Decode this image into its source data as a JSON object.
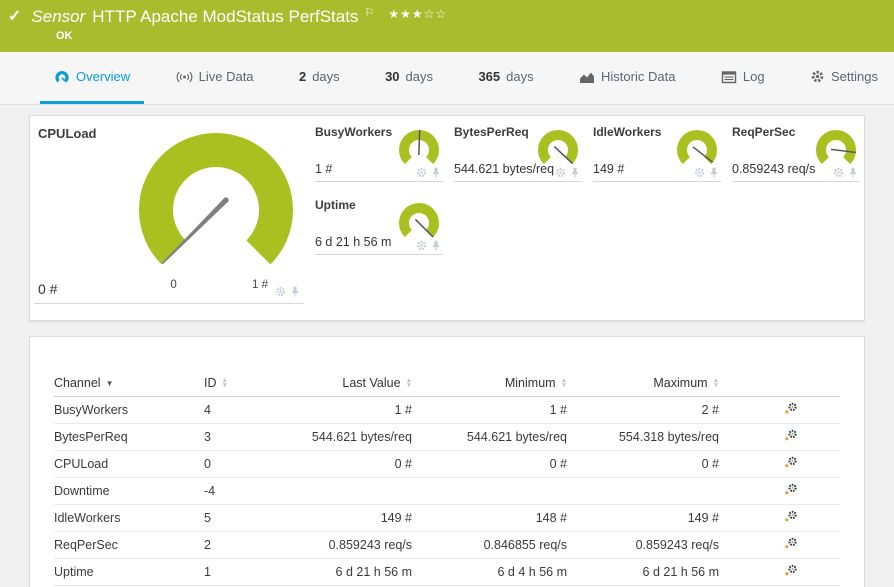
{
  "colors": {
    "header_green": "#a9bc2e",
    "gauge_green": "#a8c120",
    "accent_blue": "#0c9ed9",
    "needle_gray": "#7f7f7f",
    "tab_text": "#5b6670"
  },
  "header": {
    "type_label": "Sensor",
    "title": "HTTP Apache ModStatus PerfStats",
    "status": "OK",
    "check_glyph": "✓",
    "flag_glyph": "⚐",
    "stars_filled": "★★★",
    "stars_empty": "☆☆"
  },
  "tabs": [
    {
      "id": "overview",
      "num": "",
      "label": "Overview",
      "icon": "gauge-icon",
      "active": true
    },
    {
      "id": "live-data",
      "num": "",
      "label": "Live Data",
      "icon": "broadcast-icon",
      "active": false
    },
    {
      "id": "2-days",
      "num": "2",
      "label": "days",
      "icon": "",
      "active": false
    },
    {
      "id": "30-days",
      "num": "30",
      "label": "days",
      "icon": "",
      "active": false
    },
    {
      "id": "365-days",
      "num": "365",
      "label": "days",
      "icon": "",
      "active": false
    },
    {
      "id": "historic-data",
      "num": "",
      "label": "Historic Data",
      "icon": "chart-icon",
      "active": false
    },
    {
      "id": "log",
      "num": "",
      "label": "Log",
      "icon": "log-icon",
      "active": false
    },
    {
      "id": "settings",
      "num": "",
      "label": "Settings",
      "icon": "gear-icon",
      "active": false
    }
  ],
  "gauges": {
    "main": {
      "name": "CPULoad",
      "value": "0 #",
      "scale_min": "0",
      "scale_max": "1 #",
      "needle_deg": -135
    },
    "small": [
      {
        "name": "BusyWorkers",
        "value": "1 #",
        "needle_deg": 2
      },
      {
        "name": "BytesPerReq",
        "value": "544.621 bytes/req",
        "needle_deg": 133
      },
      {
        "name": "IdleWorkers",
        "value": "149 #",
        "needle_deg": 128
      },
      {
        "name": "ReqPerSec",
        "value": "0.859243 req/s",
        "needle_deg": 97
      },
      {
        "name": "Uptime",
        "value": "6 d 21 h 56 m",
        "needle_deg": 135
      }
    ],
    "tile_icons": [
      "gear-icon",
      "pin-icon"
    ]
  },
  "table": {
    "columns": [
      {
        "label": "Channel",
        "sort": "desc"
      },
      {
        "label": "ID",
        "sort": "none"
      },
      {
        "label": "Last Value",
        "sort": "none"
      },
      {
        "label": "Minimum",
        "sort": "none"
      },
      {
        "label": "Maximum",
        "sort": "none"
      }
    ],
    "row_action_icon": "channel-settings-icon",
    "rows": [
      {
        "channel": "BusyWorkers",
        "id": "4",
        "last": "1 #",
        "min": "1 #",
        "max": "2 #"
      },
      {
        "channel": "BytesPerReq",
        "id": "3",
        "last": "544.621 bytes/req",
        "min": "544.621 bytes/req",
        "max": "554.318 bytes/req"
      },
      {
        "channel": "CPULoad",
        "id": "0",
        "last": "0 #",
        "min": "0 #",
        "max": "0 #"
      },
      {
        "channel": "Downtime",
        "id": "-4",
        "last": "",
        "min": "",
        "max": ""
      },
      {
        "channel": "IdleWorkers",
        "id": "5",
        "last": "149 #",
        "min": "148 #",
        "max": "149 #"
      },
      {
        "channel": "ReqPerSec",
        "id": "2",
        "last": "0.859243 req/s",
        "min": "0.846855 req/s",
        "max": "0.859243 req/s"
      },
      {
        "channel": "Uptime",
        "id": "1",
        "last": "6 d 21 h 56 m",
        "min": "6 d 4 h 56 m",
        "max": "6 d 21 h 56 m"
      }
    ]
  }
}
